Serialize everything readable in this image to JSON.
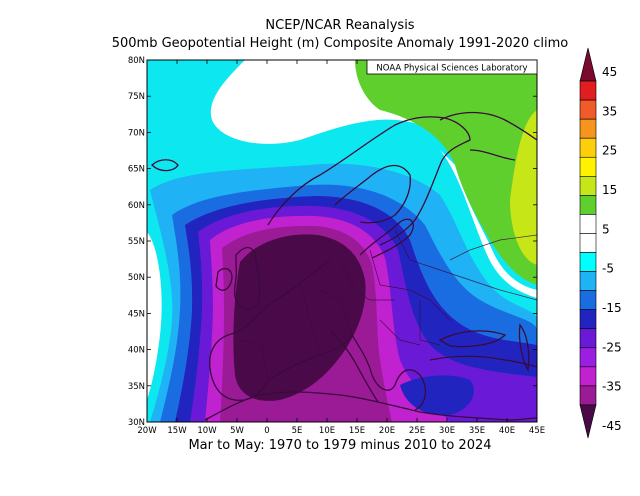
{
  "titles": {
    "line1": "NCEP/NCAR Reanalysis",
    "line2": "500mb Geopotential Height (m) Composite Anomaly 1991-2020 climo",
    "footer": "Mar to May: 1970 to 1979 minus 2010 to 2024"
  },
  "credit": "NOAA Physical Sciences Laboratory",
  "map": {
    "region": "Europe / North Atlantic",
    "lat_range": [
      30,
      80
    ],
    "lon_range": [
      -20,
      45
    ],
    "lat_labels": [
      "80N",
      "75N",
      "70N",
      "65N",
      "60N",
      "55N",
      "50N",
      "45N",
      "40N",
      "35N",
      "30N"
    ],
    "lon_labels": [
      "20W",
      "15W",
      "10W",
      "5W",
      "0",
      "5E",
      "10E",
      "15E",
      "20E",
      "25E",
      "30E",
      "35E",
      "40E",
      "45E"
    ]
  },
  "colorbar": {
    "labels": [
      "45",
      "35",
      "25",
      "15",
      "5",
      "-5",
      "-15",
      "-25",
      "-35",
      "-45"
    ],
    "colors": [
      "#7a0a2e",
      "#e21d1f",
      "#f15a29",
      "#f7941d",
      "#fdcf0a",
      "#fff200",
      "#c6e617",
      "#5fcf2e",
      "#ffffff",
      "#ffffff",
      "#00ffff",
      "#1fb2f4",
      "#1a6de0",
      "#2224c0",
      "#6a1ad7",
      "#9b1fe0",
      "#c022d0",
      "#9b1b96",
      "#4a0a4a"
    ]
  }
}
